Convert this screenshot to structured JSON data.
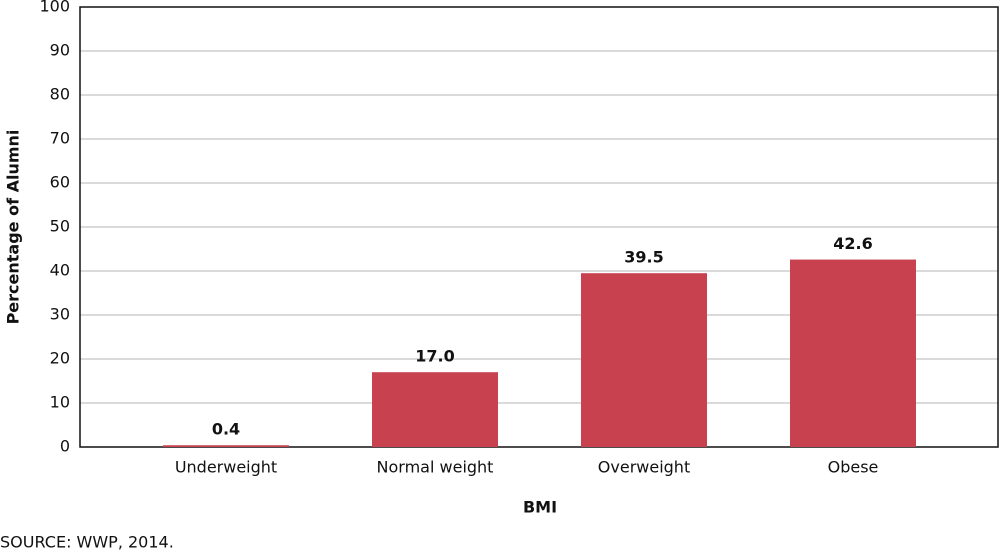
{
  "chart_data": {
    "type": "bar",
    "categories": [
      "Underweight",
      "Normal weight",
      "Overweight",
      "Obese"
    ],
    "values": [
      0.4,
      17.0,
      39.5,
      42.6
    ],
    "value_labels": [
      "0.4",
      "17.0",
      "39.5",
      "42.6"
    ],
    "color": "#c8414f",
    "x_label": "BMI",
    "y_label": "Percentage of Alumni",
    "ylim": [
      0,
      100
    ],
    "yticks": [
      0,
      10,
      20,
      30,
      40,
      50,
      60,
      70,
      80,
      90,
      100
    ],
    "grid": true,
    "source": "SOURCE: WWP, 2014."
  }
}
